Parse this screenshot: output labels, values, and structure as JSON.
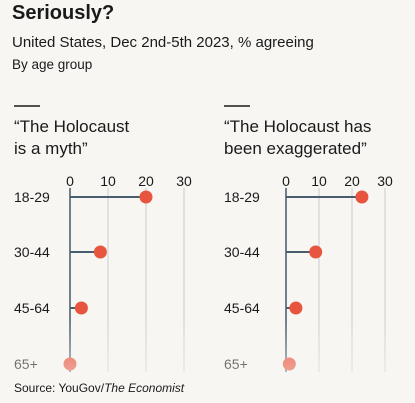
{
  "header": {
    "title": "Seriously?",
    "subtitle": "United States, Dec 2nd-5th 2023, % agreeing",
    "note": "By age group",
    "source": [
      "Source: YouGov/",
      "The Economist"
    ]
  },
  "chart_data": [
    {
      "type": "lollipop",
      "title": [
        "“The Holocaust",
        "is a myth”"
      ],
      "categories": [
        "18-29",
        "30-44",
        "45-64",
        "65+"
      ],
      "values": [
        20,
        8,
        3,
        0
      ],
      "color": "#e8553f",
      "xlim": [
        0,
        30
      ],
      "xticks": [
        0,
        10,
        20,
        30
      ],
      "grid": true
    },
    {
      "type": "lollipop",
      "title": [
        "“The Holocaust has",
        "been exaggerated”"
      ],
      "categories": [
        "18-29",
        "30-44",
        "45-64",
        "65+"
      ],
      "values": [
        23,
        9,
        3,
        1
      ],
      "color": "#e8553f",
      "xlim": [
        0,
        30
      ],
      "xticks": [
        0,
        10,
        20,
        30
      ],
      "grid": true
    }
  ]
}
